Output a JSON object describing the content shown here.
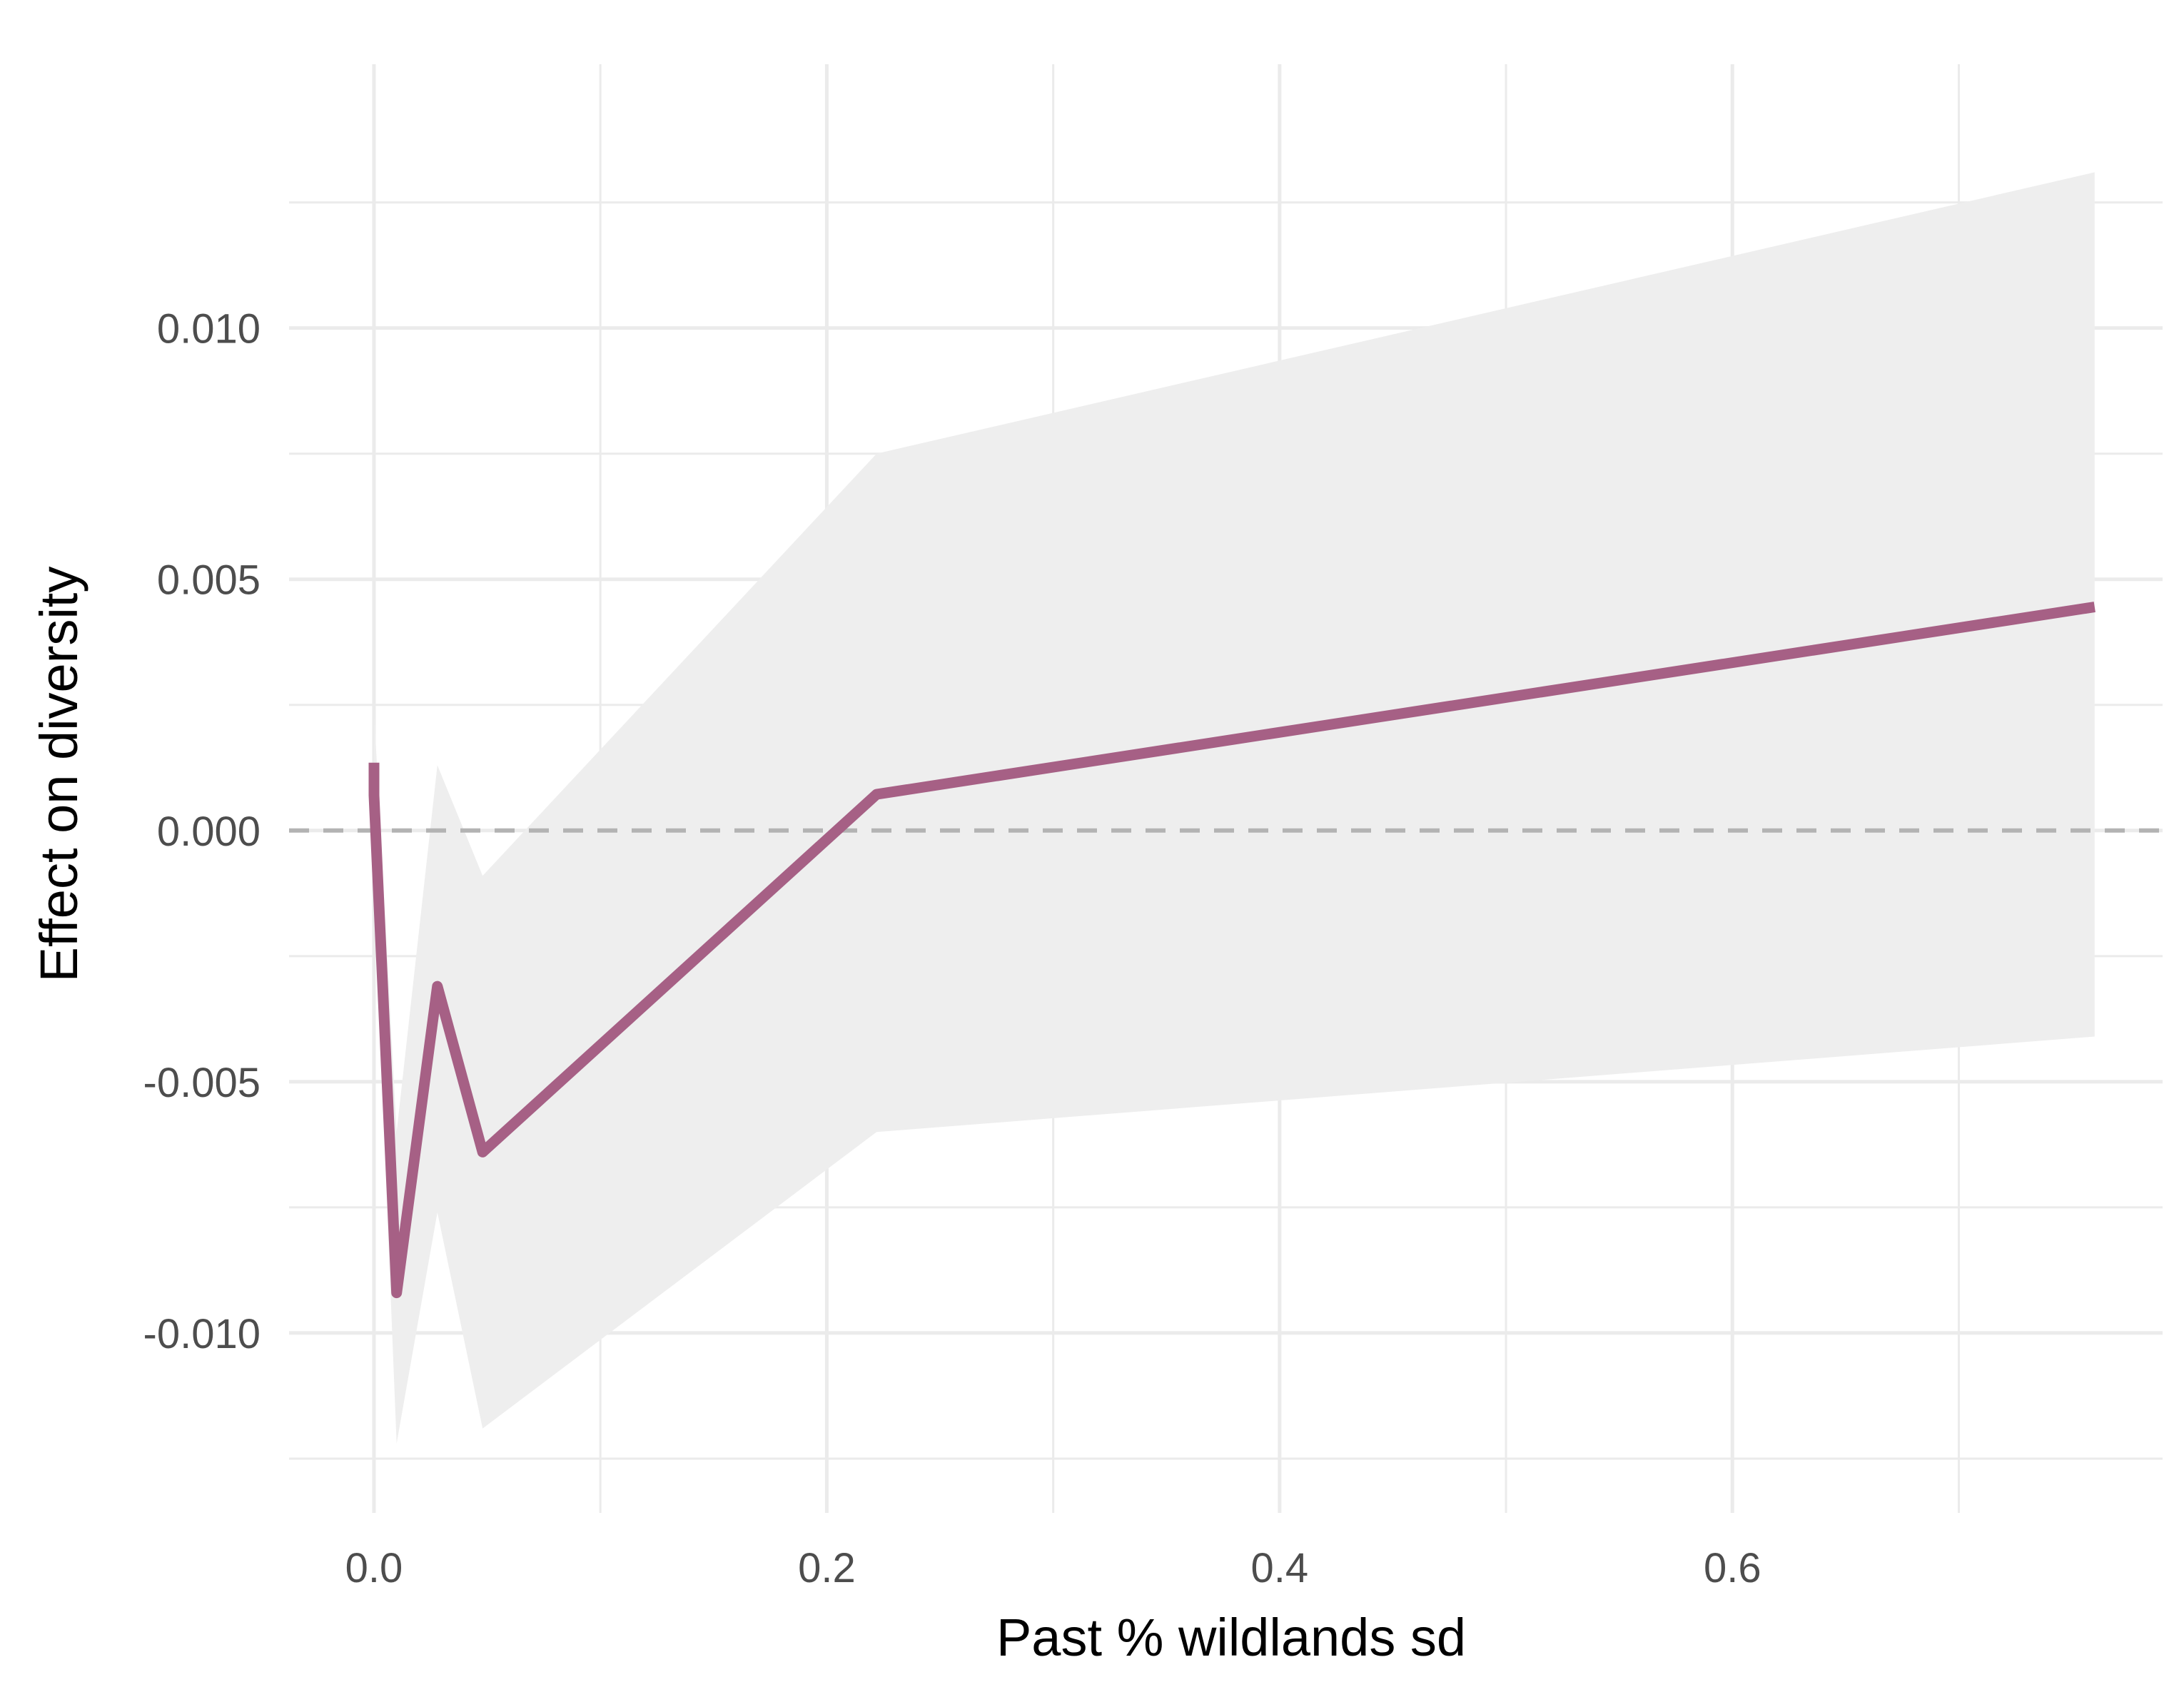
{
  "chart_data": {
    "type": "line",
    "title": "",
    "xlabel": "Past % wildlands sd",
    "ylabel": "Effect on diversity",
    "xlim": [
      -0.0375,
      0.79
    ],
    "ylim": [
      -0.01358,
      0.01525
    ],
    "x_ticks": [
      {
        "value": 0.0,
        "label": "0.0"
      },
      {
        "value": 0.2,
        "label": "0.2"
      },
      {
        "value": 0.4,
        "label": "0.4"
      },
      {
        "value": 0.6,
        "label": "0.6"
      }
    ],
    "x_minor_ticks": [
      0.1,
      0.3,
      0.5,
      0.7
    ],
    "y_ticks": [
      {
        "value": 0.01,
        "label": "0.010"
      },
      {
        "value": 0.005,
        "label": "0.005"
      },
      {
        "value": 0.0,
        "label": "0.000"
      },
      {
        "value": -0.005,
        "label": "-0.005"
      },
      {
        "value": -0.01,
        "label": "-0.010"
      }
    ],
    "y_minor_ticks": [
      0.0125,
      0.0075,
      0.0025,
      -0.0025,
      -0.0075,
      -0.0125
    ],
    "grid": true,
    "reference_line": {
      "y": 0.0,
      "style": "dashed",
      "color": "#b3b3b3"
    },
    "series": [
      {
        "color": "#a66085",
        "x": [
          0.0,
          0.0,
          0.01,
          0.028,
          0.048,
          0.222,
          0.76
        ],
        "y": [
          0.00135,
          0.0007,
          -0.0092,
          -0.0031,
          -0.0064,
          0.00072,
          0.00445
        ],
        "ribbon": {
          "color": "#eeeeee",
          "lower": [
            -0.0005,
            -0.001,
            -0.0122,
            -0.0076,
            -0.0119,
            -0.006,
            -0.0041
          ],
          "upper": [
            0.0032,
            0.0024,
            -0.006,
            0.0013,
            -0.0009,
            0.0075,
            0.0131
          ]
        }
      }
    ]
  }
}
